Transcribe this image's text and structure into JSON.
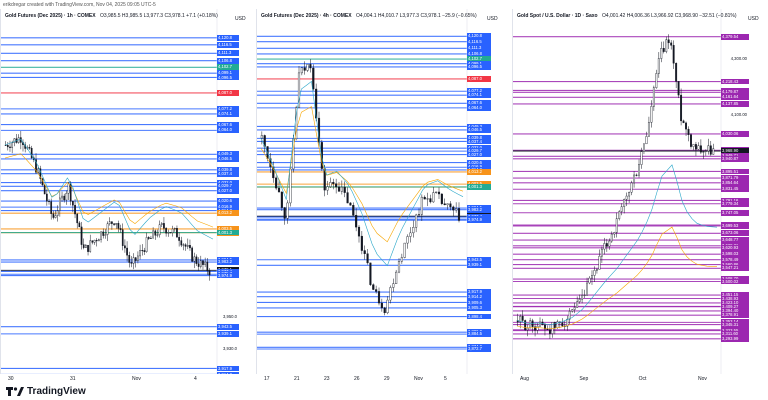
{
  "header": {
    "caption": "erikdregar created with TradingView.com, Nov 04, 2025 09:05 UTC-5"
  },
  "panels": [
    {
      "title": "Gold Futures (Dec 2025) · 1h · COMEX",
      "ohlc": "O3,985.5 H3,985.5 L3,977.3 C3,978.1 +7.1 (+0.18%)",
      "unit": "USD",
      "range": [
        3920,
        4125
      ],
      "axis_labels": [
        "3,950.0",
        "3,930.0"
      ],
      "tags": [
        {
          "text": "4,120.8",
          "color": "#2962ff"
        },
        {
          "text": "4,116.5",
          "color": "#2962ff"
        },
        {
          "text": "4,111.3",
          "color": "#2962ff"
        },
        {
          "text": "4,106.8",
          "color": "#2962ff"
        },
        {
          "text": "4,102.7",
          "color": "#22ab94"
        },
        {
          "text": "4,099.1",
          "color": "#2962ff"
        },
        {
          "text": "4,096.5",
          "color": "#2962ff"
        },
        {
          "text": "4,087.0",
          "color": "#f23645"
        },
        {
          "text": "4,077.2",
          "color": "#2962ff"
        },
        {
          "text": "4,074.1",
          "color": "#2962ff"
        },
        {
          "text": "4,067.6",
          "color": "#2962ff"
        },
        {
          "text": "4,064.0",
          "color": "#2962ff"
        },
        {
          "text": "4,049.3",
          "color": "#2962ff"
        },
        {
          "text": "4,046.5",
          "color": "#2962ff"
        },
        {
          "text": "4,039.8",
          "color": "#2962ff"
        },
        {
          "text": "4,037.4",
          "color": "#2962ff"
        },
        {
          "text": "4,032.0",
          "color": "#2962ff"
        },
        {
          "text": "4,029.7",
          "color": "#2962ff"
        },
        {
          "text": "4,027.0",
          "color": "#2962ff"
        },
        {
          "text": "4,020.6",
          "color": "#2962ff"
        },
        {
          "text": "4,016.9",
          "color": "#2962ff"
        },
        {
          "text": "4,014.8",
          "color": "#2962ff"
        },
        {
          "text": "4,013.2",
          "color": "#f7931a"
        },
        {
          "text": "4,003.5",
          "color": "#f7931a"
        },
        {
          "text": "4,001.2",
          "color": "#f7931a"
        },
        {
          "text": "4,001.3",
          "color": "#22ab94"
        },
        {
          "text": "3,984.5",
          "color": "#2962ff"
        },
        {
          "text": "3,983.2",
          "color": "#2962ff"
        },
        {
          "text": "3,978.1",
          "color": "#131722"
        },
        {
          "text": "3,977.4",
          "color": "#2962ff"
        },
        {
          "text": "3,975.7",
          "color": "#2962ff"
        },
        {
          "text": "3,974.9",
          "color": "#2962ff"
        },
        {
          "text": "3,943.5",
          "color": "#2962ff"
        },
        {
          "text": "3,939.1",
          "color": "#2962ff"
        },
        {
          "text": "3,917.9",
          "color": "#2962ff"
        },
        {
          "text": "3,914.2",
          "color": "#2962ff"
        },
        {
          "text": "3,912.3",
          "color": "#2962ff"
        }
      ],
      "ticks": [
        "30",
        "31",
        "Nov",
        "4"
      ]
    },
    {
      "title": "Gold Futures (Dec 2025) · 4h · COMEX",
      "ohlc": "O4,004.1 H4,010.7 L3,977.3 C3,978.1 −25.9 (−0.65%)",
      "unit": "USD",
      "range": [
        3860,
        4125
      ],
      "axis_labels": [],
      "tags": [
        {
          "text": "4,120.8",
          "color": "#2962ff"
        },
        {
          "text": "4,116.5",
          "color": "#2962ff"
        },
        {
          "text": "4,111.3",
          "color": "#2962ff"
        },
        {
          "text": "4,106.8",
          "color": "#2962ff"
        },
        {
          "text": "4,102.7",
          "color": "#22ab94"
        },
        {
          "text": "4,099.1",
          "color": "#2962ff"
        },
        {
          "text": "4,096.5",
          "color": "#2962ff"
        },
        {
          "text": "4,087.0",
          "color": "#f23645"
        },
        {
          "text": "4,077.2",
          "color": "#2962ff"
        },
        {
          "text": "4,074.1",
          "color": "#2962ff"
        },
        {
          "text": "4,067.6",
          "color": "#2962ff"
        },
        {
          "text": "4,064.0",
          "color": "#2962ff"
        },
        {
          "text": "4,049.3",
          "color": "#2962ff"
        },
        {
          "text": "4,046.5",
          "color": "#2962ff"
        },
        {
          "text": "4,039.8",
          "color": "#2962ff"
        },
        {
          "text": "4,037.4",
          "color": "#2962ff"
        },
        {
          "text": "4,032.0",
          "color": "#2962ff"
        },
        {
          "text": "4,029.7",
          "color": "#2962ff"
        },
        {
          "text": "4,027.0",
          "color": "#2962ff"
        },
        {
          "text": "4,020.6",
          "color": "#2962ff"
        },
        {
          "text": "4,016.9",
          "color": "#2962ff"
        },
        {
          "text": "4,014.8",
          "color": "#2962ff"
        },
        {
          "text": "4,013.2",
          "color": "#f7931a"
        },
        {
          "text": "4,003.5",
          "color": "#f7931a"
        },
        {
          "text": "4,001.2",
          "color": "#f7931a"
        },
        {
          "text": "4,001.3",
          "color": "#22ab94"
        },
        {
          "text": "3,984.5",
          "color": "#2962ff"
        },
        {
          "text": "3,983.2",
          "color": "#2962ff"
        },
        {
          "text": "3,978.1",
          "color": "#131722"
        },
        {
          "text": "3,977.4",
          "color": "#2962ff"
        },
        {
          "text": "3,975.7",
          "color": "#2962ff"
        },
        {
          "text": "3,974.9",
          "color": "#2962ff"
        },
        {
          "text": "3,943.5",
          "color": "#2962ff"
        },
        {
          "text": "3,939.1",
          "color": "#2962ff"
        },
        {
          "text": "3,917.9",
          "color": "#2962ff"
        },
        {
          "text": "3,914.2",
          "color": "#2962ff"
        },
        {
          "text": "3,909.6",
          "color": "#2962ff"
        },
        {
          "text": "3,905.3",
          "color": "#2962ff"
        },
        {
          "text": "3,898.4",
          "color": "#2962ff"
        },
        {
          "text": "3,886.0",
          "color": "#2962ff"
        },
        {
          "text": "3,884.5",
          "color": "#2962ff"
        },
        {
          "text": "3,874.0",
          "color": "#2962ff"
        },
        {
          "text": "3,872.7",
          "color": "#2962ff"
        }
      ],
      "ticks": [
        "17",
        "21",
        "23",
        "26",
        "29",
        "Nov",
        "5"
      ]
    },
    {
      "title": "Gold Spot / U.S. Dollar · 1D · Saxo",
      "ohlc": "O4,001.42 H4,006.36 L3,966.92 C3,968.90 −32.51 (−0.81%)",
      "unit": "USD",
      "range": [
        3200,
        4400
      ],
      "axis_labels": [
        "4,300.00",
        "4,100.00"
      ],
      "tags": [
        {
          "text": "4,379.54",
          "color": "#9c27b0"
        },
        {
          "text": "4,218.43",
          "color": "#9c27b0"
        },
        {
          "text": "4,186.40",
          "color": "#9c27b0"
        },
        {
          "text": "4,179.87",
          "color": "#9c27b0"
        },
        {
          "text": "4,161.64",
          "color": "#9c27b0"
        },
        {
          "text": "4,137.85",
          "color": "#9c27b0"
        },
        {
          "text": "4,030.06",
          "color": "#9c27b0"
        },
        {
          "text": "3,971.49",
          "color": "#9c27b0"
        },
        {
          "text": "3,968.90",
          "color": "#131722"
        },
        {
          "text": "3,949.71",
          "color": "#9c27b0"
        },
        {
          "text": "3,940.87",
          "color": "#9c27b0"
        },
        {
          "text": "3,895.51",
          "color": "#9c27b0"
        },
        {
          "text": "3,871.79",
          "color": "#9c27b0"
        },
        {
          "text": "3,854.64",
          "color": "#9c27b0"
        },
        {
          "text": "3,831.45",
          "color": "#9c27b0"
        },
        {
          "text": "3,791.16",
          "color": "#9c27b0"
        },
        {
          "text": "3,779.34",
          "color": "#9c27b0"
        },
        {
          "text": "3,747.05",
          "color": "#9c27b0"
        },
        {
          "text": "3,703.02",
          "color": "#9c27b0"
        },
        {
          "text": "3,699.53",
          "color": "#9c27b0"
        },
        {
          "text": "3,673.06",
          "color": "#9c27b0"
        },
        {
          "text": "3,648.77",
          "color": "#9c27b0"
        },
        {
          "text": "3,628.31",
          "color": "#9c27b0"
        },
        {
          "text": "3,620.93",
          "color": "#9c27b0"
        },
        {
          "text": "3,598.03",
          "color": "#9c27b0"
        },
        {
          "text": "3,578.49",
          "color": "#9c27b0"
        },
        {
          "text": "3,560.86",
          "color": "#9c27b0"
        },
        {
          "text": "3,547.21",
          "color": "#9c27b0"
        },
        {
          "text": "3,508.70",
          "color": "#9c27b0"
        },
        {
          "text": "3,500.02",
          "color": "#9c27b0"
        },
        {
          "text": "3,451.15",
          "color": "#9c27b0"
        },
        {
          "text": "3,438.93",
          "color": "#9c27b0"
        },
        {
          "text": "3,423.10",
          "color": "#9c27b0"
        },
        {
          "text": "3,410.50",
          "color": "#9c27b0"
        },
        {
          "text": "3,409.27",
          "color": "#9c27b0"
        },
        {
          "text": "3,394.40",
          "color": "#9c27b0"
        },
        {
          "text": "3,378.91",
          "color": "#9c27b0"
        },
        {
          "text": "3,353.14",
          "color": "#9c27b0"
        },
        {
          "text": "3,345.31",
          "color": "#9c27b0"
        },
        {
          "text": "3,326.30",
          "color": "#9c27b0"
        },
        {
          "text": "3,323.55",
          "color": "#9c27b0"
        },
        {
          "text": "3,311.60",
          "color": "#9c27b0"
        },
        {
          "text": "3,293.99",
          "color": "#9c27b0"
        }
      ],
      "ticks": [
        "Aug",
        "Sep",
        "Oct",
        "Nov"
      ]
    }
  ],
  "footer": {
    "brand": "TradingView"
  }
}
